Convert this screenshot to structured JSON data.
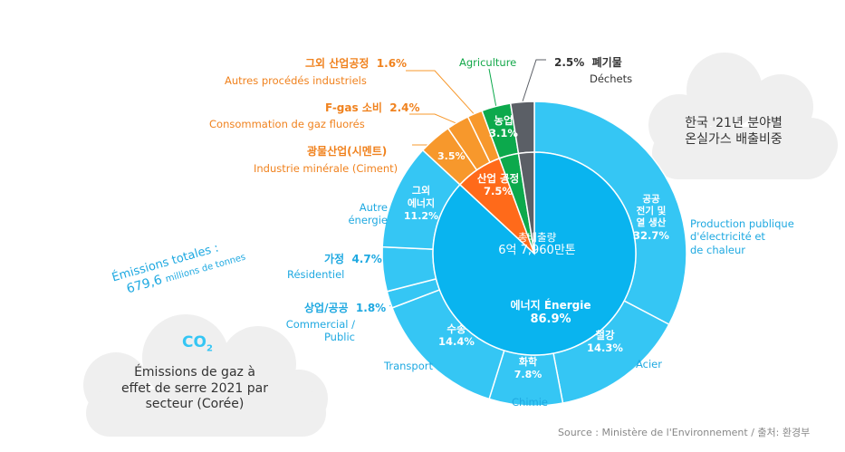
{
  "chart_data": {
    "type": "pie",
    "center": {
      "label_ko": "총배출량",
      "value": "6억 7,960만톤"
    },
    "inner": [
      {
        "name": "energie",
        "label": "에너지 Énergie",
        "value": 86.9,
        "value_label": "86.9%",
        "color": "#09b4ef"
      },
      {
        "name": "industrie",
        "label": "산업 공정",
        "value": 7.5,
        "value_label": "7.5%",
        "color": "#ff6a1a"
      },
      {
        "name": "agriculture",
        "label": "농업",
        "value": 3.1,
        "value_label": "3.1%",
        "color": "#0ca94c"
      },
      {
        "name": "dechets",
        "label": "",
        "value": 2.5,
        "value_label": "",
        "color": "#5b5f66"
      }
    ],
    "outer": [
      {
        "name": "production",
        "value": 32.7,
        "label_ko": "공공 전기 및 열 생산",
        "value_label": "32.7%",
        "label_fr": "Production publique d'électricité et de chaleur",
        "color": "#35c6f4"
      },
      {
        "name": "acier",
        "value": 14.3,
        "label_ko": "철강",
        "value_label": "14.3%",
        "label_fr": "Acier",
        "color": "#35c6f4"
      },
      {
        "name": "chimie",
        "value": 7.8,
        "label_ko": "화학",
        "value_label": "7.8%",
        "label_fr": "Chimie",
        "color": "#35c6f4"
      },
      {
        "name": "transport",
        "value": 14.4,
        "label_ko": "수송",
        "value_label": "14.4%",
        "label_fr": "Transport",
        "color": "#35c6f4"
      },
      {
        "name": "commercial",
        "value": 1.8,
        "label_ko": "상업/공공",
        "value_label": "1.8%",
        "label_fr": "Commercial / Public",
        "color": "#35c6f4"
      },
      {
        "name": "residentiel",
        "value": 4.7,
        "label_ko": "가정",
        "value_label": "4.7%",
        "label_fr": "Résidentiel",
        "color": "#35c6f4"
      },
      {
        "name": "autre-energie",
        "value": 11.2,
        "label_ko": "그외 에너지",
        "value_label": "11.2%",
        "label_fr": "Autre énergie",
        "color": "#35c6f4"
      },
      {
        "name": "ciment",
        "value": 3.5,
        "label_ko": "광물산업(시멘트)",
        "value_label": "3.5%",
        "label_fr": "Industrie minérale (Ciment)",
        "color": "#f7982c"
      },
      {
        "name": "fgas",
        "value": 2.4,
        "label_ko": "F-gas 소비",
        "value_label": "2.4%",
        "label_fr": "Consommation de gaz fluorés",
        "color": "#f7982c"
      },
      {
        "name": "autres-procedes",
        "value": 1.6,
        "label_ko": "그외 산업공정",
        "value_label": "1.6%",
        "label_fr": "Autres procédés industriels",
        "color": "#f7982c"
      },
      {
        "name": "agriculture",
        "value": 3.1,
        "label_ko": "",
        "value_label": "",
        "label_fr": "Agriculture",
        "color": "#0ca94c"
      },
      {
        "name": "dechets",
        "value": 2.5,
        "label_ko": "폐기물",
        "value_label": "2.5%",
        "label_fr": "Déchets",
        "color": "#5b5f66"
      }
    ]
  },
  "labels": {
    "autres_ko": "그외 산업공정",
    "autres_val": "1.6%",
    "autres_fr": "Autres procédés industriels",
    "fgas_ko": "F-gas 소비",
    "fgas_val": "2.4%",
    "fgas_fr": "Consommation de gaz fluorés",
    "ciment_ko": "광물산업(시멘트)",
    "ciment_fr": "Industrie minérale (Ciment)",
    "ciment_val": "3.5%",
    "agri_fr": "Agriculture",
    "agri_ko": "농업",
    "agri_val": "3.1%",
    "dechets_val": "2.5%",
    "dechets_ko": "폐기물",
    "dechets_fr": "Déchets",
    "industrie_ko": "산업 공정",
    "industrie_val": "7.5%",
    "autre_energie_ko1": "그외",
    "autre_energie_ko2": "에너지",
    "autre_energie_val": "11.2%",
    "autre_energie_fr1": "Autre",
    "autre_energie_fr2": "énergie",
    "residentiel_ko": "가정",
    "residentiel_val": "4.7%",
    "residentiel_fr": "Résidentiel",
    "commercial_ko": "상업/공공",
    "commercial_val": "1.8%",
    "commercial_fr1": "Commercial /",
    "commercial_fr2": "Public",
    "transport_ko": "수송",
    "transport_val": "14.4%",
    "transport_fr": "Transport",
    "chimie_ko": "화학",
    "chimie_val": "7.8%",
    "chimie_fr": "Chimie",
    "acier_ko": "철강",
    "acier_val": "14.3%",
    "acier_fr": "Acier",
    "production_ko1": "공공",
    "production_ko2": "전기 및",
    "production_ko3": "열 생산",
    "production_val": "32.7%",
    "production_fr1": "Production publique",
    "production_fr2": "d'électricité et",
    "production_fr3": "de chaleur",
    "center_ko": "총배출량",
    "center_val": "6억 7,960만톤",
    "energie_label": "에너지 Énergie",
    "energie_val": "86.9%"
  },
  "title_ko_1": "한국 '21년 분야별",
  "title_ko_2": "온실가스 배출비중",
  "emissions_1": "Émissions totales :",
  "emissions_2": "679,6",
  "emissions_3": "millions de tonnes",
  "co2": "CO",
  "co2_sub": "2",
  "subtitle_fr_1": "Émissions de gaz à",
  "subtitle_fr_2": "effet de serre 2021 par",
  "subtitle_fr_3": "secteur (Corée)",
  "source": "Source : Ministère de l'Environnement / 출처: 환경부"
}
